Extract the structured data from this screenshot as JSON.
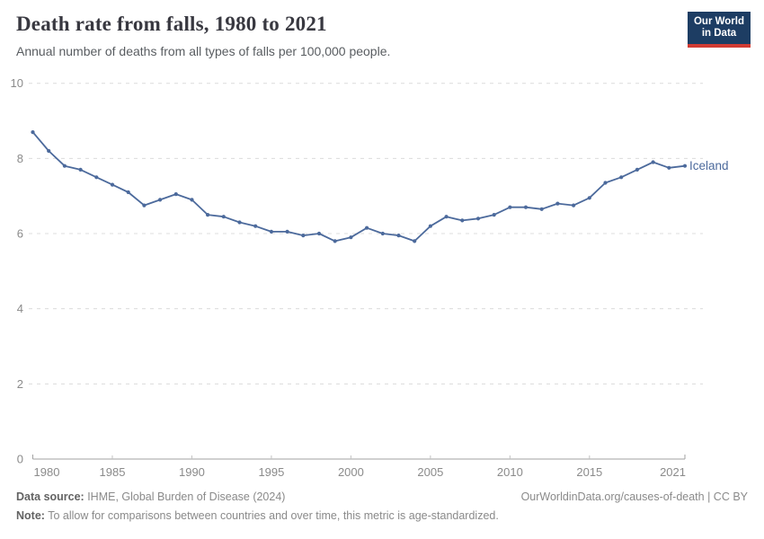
{
  "header": {
    "title": "Death rate from falls, 1980 to 2021",
    "subtitle": "Annual number of deaths from all types of falls per 100,000 people.",
    "logo": {
      "line1": "Our World",
      "line2": "in Data"
    }
  },
  "chart_data": {
    "type": "line",
    "title": "Death rate from falls, 1980 to 2021",
    "xlabel": "",
    "ylabel": "",
    "xlim": [
      1980,
      2021
    ],
    "ylim": [
      0,
      10
    ],
    "grid": "horizontal-dashed",
    "legend_position": "end-of-line-label",
    "x_tick_labels": [
      1980,
      1985,
      1990,
      1995,
      2000,
      2005,
      2010,
      2015,
      2021
    ],
    "y_tick_labels": [
      0,
      2,
      4,
      6,
      8,
      10
    ],
    "x": [
      1980,
      1981,
      1982,
      1983,
      1984,
      1985,
      1986,
      1987,
      1988,
      1989,
      1990,
      1991,
      1992,
      1993,
      1994,
      1995,
      1996,
      1997,
      1998,
      1999,
      2000,
      2001,
      2002,
      2003,
      2004,
      2005,
      2006,
      2007,
      2008,
      2009,
      2010,
      2011,
      2012,
      2013,
      2014,
      2015,
      2016,
      2017,
      2018,
      2019,
      2020,
      2021
    ],
    "series": [
      {
        "name": "Iceland",
        "color": "#4c6a9c",
        "values": [
          8.7,
          8.2,
          7.8,
          7.7,
          7.5,
          7.3,
          7.1,
          6.75,
          6.9,
          7.05,
          6.9,
          6.5,
          6.45,
          6.3,
          6.2,
          6.05,
          6.05,
          5.95,
          6.0,
          5.8,
          5.9,
          6.15,
          6.0,
          5.95,
          5.8,
          6.2,
          6.45,
          6.35,
          6.4,
          6.5,
          6.7,
          6.7,
          6.65,
          6.8,
          6.75,
          6.95,
          7.35,
          7.5,
          7.7,
          7.9,
          7.75,
          7.8
        ]
      }
    ]
  },
  "colors": {
    "line": "#4c6a9c",
    "grid": "#dcdcdc",
    "axis": "#a1a1a1",
    "tick_text": "#8b8b8b",
    "logo_bg": "#1d3d63",
    "logo_bar": "#d13b33"
  },
  "footer": {
    "data_source_label": "Data source:",
    "data_source_text": " IHME, Global Burden of Disease (2024)",
    "link_text": "OurWorldinData.org/causes-of-death | CC BY",
    "note_label": "Note:",
    "note_text": " To allow for comparisons between countries and over time, this metric is age-standardized."
  }
}
